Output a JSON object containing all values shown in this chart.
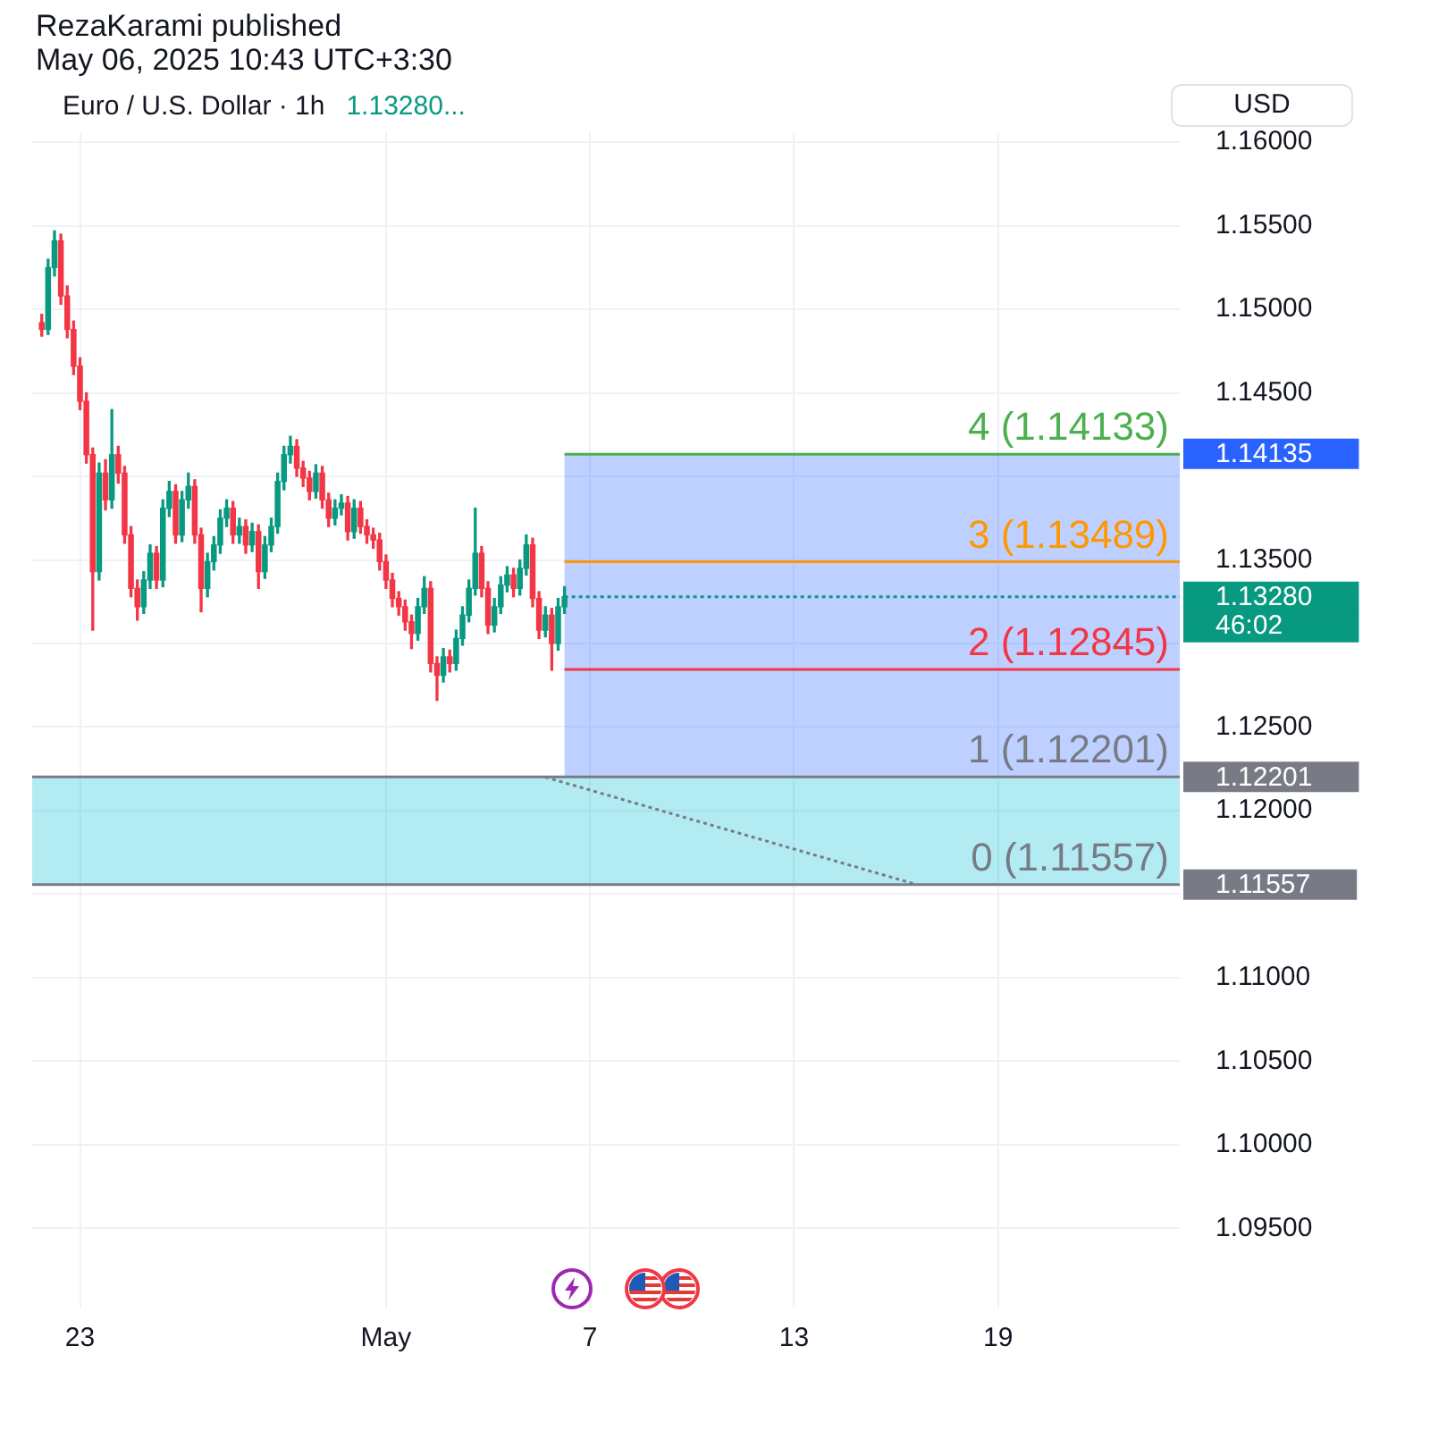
{
  "chart_data": {
    "type": "candlestick",
    "title": "Euro / U.S. Dollar · 1h",
    "subtitle": "1.13280...",
    "ylabel": "USD",
    "annotations": [
      "RezaKarami published",
      "May 06, 2025 10:43 UTC+3:30",
      {
        "text": "4 (1.14133)",
        "y": 1.14133
      },
      {
        "text": "3 (1.13489)",
        "y": 1.13489
      },
      {
        "text": "2 (1.12845)",
        "y": 1.12845
      },
      {
        "text": "1 (1.12201)",
        "y": 1.12201
      },
      {
        "text": "0 (1.11557)",
        "y": 1.11557
      },
      "46:02"
    ],
    "categories": [
      null,
      null,
      null,
      null,
      null,
      null,
      null,
      "23",
      null,
      null,
      null,
      null,
      null,
      null,
      null,
      null,
      null,
      null,
      null,
      null,
      null,
      null,
      null,
      null,
      null,
      null,
      null,
      null,
      null,
      null,
      null,
      null,
      null,
      null,
      null,
      null,
      null,
      null,
      null,
      null,
      null,
      null,
      null,
      null,
      null,
      null,
      null,
      null,
      null,
      null,
      null,
      null,
      null,
      null,
      null,
      "May",
      null,
      null,
      null,
      null,
      null,
      null,
      null,
      null,
      null,
      null,
      null,
      null,
      null,
      null,
      null,
      null,
      null,
      null,
      null,
      null,
      null,
      null,
      null,
      null,
      null,
      null,
      null,
      null,
      null,
      null,
      null,
      "7",
      null,
      null,
      null,
      null,
      null,
      null,
      null,
      null,
      null,
      null,
      null,
      null,
      null,
      null,
      null,
      null,
      null,
      null,
      null,
      null,
      null,
      null,
      null,
      null,
      null,
      null,
      null,
      null,
      null,
      null,
      null,
      "13",
      null,
      null,
      null,
      null,
      null,
      null,
      null,
      null,
      null,
      null,
      null,
      null,
      null,
      null,
      null,
      null,
      null,
      null,
      null,
      null,
      null,
      null,
      null,
      null,
      null,
      null,
      null,
      null,
      null,
      null,
      null,
      "19",
      null,
      null,
      null,
      null,
      null,
      null,
      null,
      null,
      null,
      null,
      null,
      null,
      null,
      null,
      null,
      null,
      null,
      null,
      null,
      null,
      null,
      null,
      null,
      null,
      null,
      null,
      null,
      null
    ],
    "ohlc": [
      null,
      [
        1.1492,
        1.1497,
        1.1484,
        1.1488
      ],
      [
        1.1488,
        1.153,
        1.1485,
        1.1525
      ],
      [
        1.1525,
        1.1547,
        1.152,
        1.1541
      ],
      [
        1.1541,
        1.1545,
        1.1503,
        1.1508
      ],
      [
        1.1508,
        1.1514,
        1.1483,
        1.1488
      ],
      [
        1.1488,
        1.1493,
        1.1461,
        1.1466
      ],
      [
        1.1466,
        1.1471,
        1.144,
        1.1445
      ],
      [
        1.1445,
        1.145,
        1.1408,
        1.1413
      ],
      [
        1.1413,
        1.1417,
        1.1308,
        1.1343
      ],
      [
        1.1343,
        1.1408,
        1.1338,
        1.1402
      ],
      [
        1.1402,
        1.141,
        1.138,
        1.1386
      ],
      [
        1.1386,
        1.144,
        1.1381,
        1.1413
      ],
      [
        1.1413,
        1.1418,
        1.1396,
        1.1402
      ],
      [
        1.1402,
        1.1406,
        1.136,
        1.1365
      ],
      [
        1.1365,
        1.137,
        1.1328,
        1.1333
      ],
      [
        1.1333,
        1.1338,
        1.1314,
        1.1322
      ],
      [
        1.1322,
        1.1343,
        1.1318,
        1.1338
      ],
      [
        1.1338,
        1.1359,
        1.1333,
        1.1354
      ],
      [
        1.1354,
        1.1358,
        1.1333,
        1.1338
      ],
      [
        1.1338,
        1.1386,
        1.1334,
        1.1381
      ],
      [
        1.1381,
        1.1397,
        1.1376,
        1.1391
      ],
      [
        1.1391,
        1.1395,
        1.136,
        1.1365
      ],
      [
        1.1365,
        1.1391,
        1.1361,
        1.1386
      ],
      [
        1.1386,
        1.1402,
        1.1381,
        1.1394
      ],
      [
        1.1394,
        1.1398,
        1.136,
        1.1365
      ],
      [
        1.1365,
        1.1369,
        1.1319,
        1.1333
      ],
      [
        1.1333,
        1.1354,
        1.1328,
        1.1349
      ],
      [
        1.1349,
        1.1364,
        1.1344,
        1.1359
      ],
      [
        1.1359,
        1.138,
        1.1354,
        1.1375
      ],
      [
        1.1375,
        1.1386,
        1.137,
        1.1381
      ],
      [
        1.1381,
        1.1385,
        1.136,
        1.1365
      ],
      [
        1.1365,
        1.1375,
        1.136,
        1.137
      ],
      [
        1.137,
        1.1374,
        1.1354,
        1.1359
      ],
      [
        1.1359,
        1.1372,
        1.1355,
        1.1367
      ],
      [
        1.1367,
        1.1371,
        1.1333,
        1.1343
      ],
      [
        1.1343,
        1.1364,
        1.1339,
        1.1359
      ],
      [
        1.1359,
        1.1375,
        1.1355,
        1.137
      ],
      [
        1.137,
        1.1402,
        1.1366,
        1.1397
      ],
      [
        1.1397,
        1.1418,
        1.1392,
        1.1413
      ],
      [
        1.1413,
        1.1424,
        1.1408,
        1.1418
      ],
      [
        1.1418,
        1.1422,
        1.14,
        1.1405
      ],
      [
        1.1405,
        1.1409,
        1.1394,
        1.1399
      ],
      [
        1.1399,
        1.1403,
        1.1386,
        1.1391
      ],
      [
        1.1391,
        1.1407,
        1.1387,
        1.1402
      ],
      [
        1.1402,
        1.1406,
        1.1381,
        1.1386
      ],
      [
        1.1386,
        1.139,
        1.137,
        1.1375
      ],
      [
        1.1375,
        1.1386,
        1.1371,
        1.1381
      ],
      [
        1.1381,
        1.1389,
        1.1377,
        1.1384
      ],
      [
        1.1384,
        1.1388,
        1.1362,
        1.1367
      ],
      [
        1.1367,
        1.1386,
        1.1363,
        1.1381
      ],
      [
        1.1381,
        1.1385,
        1.1366,
        1.137
      ],
      [
        1.137,
        1.1374,
        1.136,
        1.1365
      ],
      [
        1.1365,
        1.1369,
        1.1357,
        1.1362
      ],
      [
        1.1362,
        1.1366,
        1.1344,
        1.1349
      ],
      [
        1.1349,
        1.1353,
        1.1333,
        1.1338
      ],
      [
        1.1338,
        1.1342,
        1.1322,
        1.1327
      ],
      [
        1.1327,
        1.1331,
        1.1317,
        1.1322
      ],
      [
        1.1322,
        1.1326,
        1.1308,
        1.1313
      ],
      [
        1.1313,
        1.1317,
        1.1297,
        1.1306
      ],
      [
        1.1306,
        1.1327,
        1.1302,
        1.1322
      ],
      [
        1.1322,
        1.134,
        1.1318,
        1.1333
      ],
      [
        1.1333,
        1.1337,
        1.1283,
        1.1288
      ],
      [
        1.1288,
        1.1292,
        1.1266,
        1.1281
      ],
      [
        1.1281,
        1.1297,
        1.1277,
        1.1292
      ],
      [
        1.1292,
        1.1296,
        1.1283,
        1.1288
      ],
      [
        1.1288,
        1.1308,
        1.1284,
        1.1303
      ],
      [
        1.1303,
        1.1322,
        1.1299,
        1.1317
      ],
      [
        1.1317,
        1.1338,
        1.1313,
        1.1333
      ],
      [
        1.1333,
        1.1381,
        1.1329,
        1.1354
      ],
      [
        1.1354,
        1.1358,
        1.1328,
        1.1333
      ],
      [
        1.1333,
        1.1337,
        1.1306,
        1.1311
      ],
      [
        1.1311,
        1.1327,
        1.1307,
        1.1322
      ],
      [
        1.1322,
        1.134,
        1.1318,
        1.1335
      ],
      [
        1.1335,
        1.1346,
        1.1331,
        1.1341
      ],
      [
        1.1341,
        1.1345,
        1.1328,
        1.1333
      ],
      [
        1.1333,
        1.135,
        1.1329,
        1.1345
      ],
      [
        1.1345,
        1.1365,
        1.1341,
        1.1359
      ],
      [
        1.1359,
        1.1363,
        1.1322,
        1.1327
      ],
      [
        1.1327,
        1.1331,
        1.1303,
        1.1308
      ],
      [
        1.1308,
        1.1322,
        1.1304,
        1.1317
      ],
      [
        1.1317,
        1.1321,
        1.1284,
        1.13
      ],
      [
        1.13,
        1.1327,
        1.1296,
        1.1322
      ],
      [
        1.1322,
        1.1334,
        1.1318,
        1.1328
      ],
      null,
      null,
      null,
      null,
      null,
      null,
      null,
      null,
      null,
      null,
      null,
      null,
      null,
      null,
      null,
      null,
      null,
      null,
      null,
      null,
      null,
      null,
      null,
      null,
      null,
      null,
      null,
      null,
      null,
      null,
      null,
      null,
      null,
      null,
      null,
      null,
      null,
      null,
      null,
      null,
      null,
      null,
      null,
      null,
      null,
      null,
      null,
      null,
      null,
      null,
      null,
      null,
      null,
      null,
      null,
      null,
      null,
      null,
      null,
      null,
      null,
      null,
      null,
      null,
      null,
      null,
      null,
      null,
      null,
      null,
      null,
      null,
      null,
      null,
      null,
      null,
      null,
      null,
      null,
      null,
      null,
      null,
      null,
      null,
      null,
      null,
      null,
      null,
      null,
      null,
      null,
      null,
      null,
      null,
      null,
      null
    ],
    "colors": [
      null,
      "#f23645",
      "#089981",
      "#089981",
      "#f23645",
      "#f23645",
      "#f23645",
      "#f23645",
      "#f23645",
      "#f23645",
      "#089981",
      "#f23645",
      "#089981",
      "#f23645",
      "#f23645",
      "#f23645",
      "#f23645",
      "#089981",
      "#089981",
      "#f23645",
      "#089981",
      "#089981",
      "#f23645",
      "#089981",
      "#089981",
      "#f23645",
      "#f23645",
      "#089981",
      "#089981",
      "#089981",
      "#089981",
      "#f23645",
      "#089981",
      "#f23645",
      "#089981",
      "#f23645",
      "#089981",
      "#089981",
      "#089981",
      "#089981",
      "#089981",
      "#f23645",
      "#f23645",
      "#f23645",
      "#089981",
      "#f23645",
      "#f23645",
      "#089981",
      "#089981",
      "#f23645",
      "#089981",
      "#f23645",
      "#f23645",
      "#f23645",
      "#f23645",
      "#f23645",
      "#f23645",
      "#f23645",
      "#f23645",
      "#f23645",
      "#089981",
      "#089981",
      "#f23645",
      "#f23645",
      "#089981",
      "#f23645",
      "#089981",
      "#089981",
      "#089981",
      "#089981",
      "#f23645",
      "#f23645",
      "#089981",
      "#089981",
      "#089981",
      "#f23645",
      "#089981",
      "#089981",
      "#f23645",
      "#f23645",
      "#089981",
      "#f23645",
      "#089981",
      "#089981",
      null,
      null,
      null,
      null,
      null,
      null,
      null,
      null,
      null,
      null,
      null,
      null,
      null,
      null,
      null,
      null,
      null,
      null,
      null,
      null,
      null,
      null,
      null,
      null,
      null,
      null,
      null,
      null,
      null,
      null,
      null,
      null,
      null,
      null,
      null,
      null,
      null,
      null,
      null,
      null,
      null,
      null,
      null,
      null,
      null,
      null,
      null,
      null,
      null,
      null,
      null,
      null,
      null,
      null,
      null,
      null,
      null,
      null,
      null,
      null,
      null,
      null,
      null,
      null,
      null,
      null,
      null,
      null,
      null,
      null,
      null,
      null,
      null,
      null,
      null,
      null,
      null,
      null,
      null,
      null,
      null,
      null,
      null,
      null,
      null,
      null,
      null,
      null,
      null,
      null,
      null,
      null,
      null,
      null,
      null,
      null
    ],
    "series": [
      {
        "type": "line",
        "color": "#787b86",
        "line_style": "dotted",
        "marker": "none",
        "values": [
          null,
          null,
          null,
          null,
          null,
          null,
          null,
          null,
          null,
          null,
          null,
          null,
          null,
          null,
          null,
          null,
          null,
          null,
          null,
          null,
          null,
          null,
          null,
          null,
          null,
          null,
          null,
          null,
          null,
          null,
          null,
          null,
          null,
          null,
          null,
          null,
          null,
          null,
          null,
          null,
          null,
          null,
          null,
          null,
          null,
          null,
          null,
          null,
          null,
          null,
          null,
          null,
          null,
          null,
          null,
          null,
          null,
          null,
          null,
          null,
          null,
          null,
          null,
          null,
          null,
          null,
          null,
          null,
          null,
          null,
          null,
          null,
          null,
          null,
          null,
          null,
          null,
          null,
          null,
          null,
          1.122,
          null,
          null,
          null,
          null,
          null,
          null,
          null,
          null,
          null,
          null,
          null,
          null,
          null,
          null,
          null,
          null,
          null,
          null,
          null,
          null,
          null,
          null,
          null,
          null,
          null,
          null,
          null,
          null,
          null,
          null,
          null,
          null,
          null,
          null,
          null,
          null,
          null,
          null,
          null,
          null,
          null,
          null,
          null,
          null,
          null,
          null,
          null,
          null,
          null,
          null,
          null,
          null,
          null,
          null,
          null,
          null,
          null,
          1.1156,
          null,
          null,
          null,
          null,
          null,
          null,
          null,
          null,
          null,
          null,
          null,
          null,
          null,
          null,
          null,
          null,
          null,
          null,
          null,
          null,
          null,
          null,
          null,
          null,
          null,
          null,
          null,
          null,
          null,
          null,
          null,
          null,
          null,
          null,
          null,
          null,
          null,
          null,
          null,
          null,
          null
        ]
      }
    ],
    "ylim": [
      1.0902,
      1.1606
    ],
    "yticks": [
      {
        "value": 1.095,
        "label": "1.09500"
      },
      {
        "value": 1.1,
        "label": "1.10000"
      },
      {
        "value": 1.105,
        "label": "1.10500"
      },
      {
        "value": 1.11,
        "label": "1.11000"
      },
      {
        "value": 1.115,
        "label": null
      },
      {
        "value": 1.12,
        "label": "1.12000"
      },
      {
        "value": 1.125,
        "label": "1.12500"
      },
      {
        "value": 1.13,
        "label": null
      },
      {
        "value": 1.135,
        "label": "1.13500"
      },
      {
        "value": 1.14,
        "label": null
      },
      {
        "value": 1.145,
        "label": "1.14500"
      },
      {
        "value": 1.15,
        "label": "1.15000"
      },
      {
        "value": 1.155,
        "label": "1.15500"
      },
      {
        "value": 1.16,
        "label": "1.16000"
      }
    ],
    "grid": true,
    "ref_lines": [
      {
        "axis": "y",
        "value": 1.14133,
        "color": "#4caf50"
      },
      {
        "axis": "y",
        "value": 1.13489,
        "color": "#ff9800"
      },
      {
        "axis": "y",
        "value": 1.12845,
        "color": "#f23645"
      },
      {
        "axis": "y",
        "value": 1.12201,
        "label": "1.12201",
        "color": "#787b86"
      },
      {
        "axis": "y",
        "value": 1.11557,
        "label": "1.11557",
        "color": "#787b86"
      },
      {
        "axis": "y",
        "value": 1.1328,
        "label": "1.13280",
        "color": "#089981",
        "line_style": "dotted"
      }
    ],
    "bands": [
      {
        "axis": "y",
        "from": 1.12201,
        "to": 1.14135,
        "label": "1.14135",
        "color": "#2962ff"
      },
      {
        "axis": "y",
        "from": 1.11557,
        "to": 1.12201,
        "color": "#00bcd4"
      }
    ]
  }
}
